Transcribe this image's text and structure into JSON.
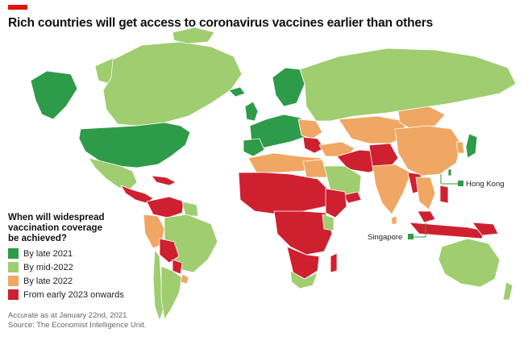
{
  "title": "Rich countries will get access to coronavirus vaccines earlier than others",
  "legend": {
    "title": "When will widespread vaccination coverage be achieved?",
    "items": [
      {
        "label": "By late 2021",
        "color": "#2e9b49"
      },
      {
        "label": "By mid-2022",
        "color": "#9fcd6f"
      },
      {
        "label": "By late 2022",
        "color": "#f0a763"
      },
      {
        "label": "From early 2023 onwards",
        "color": "#cf2030"
      }
    ]
  },
  "callouts": {
    "hong_kong": "Hong Kong",
    "singapore": "Singapore"
  },
  "notes": {
    "accurate": "Accurate as at January 22nd, 2021",
    "source": "Source: The Economist Intelligence Unit."
  },
  "colors": {
    "brand": "#e3120b",
    "border": "#ffffff",
    "callout_marker": "#2e9b49"
  }
}
